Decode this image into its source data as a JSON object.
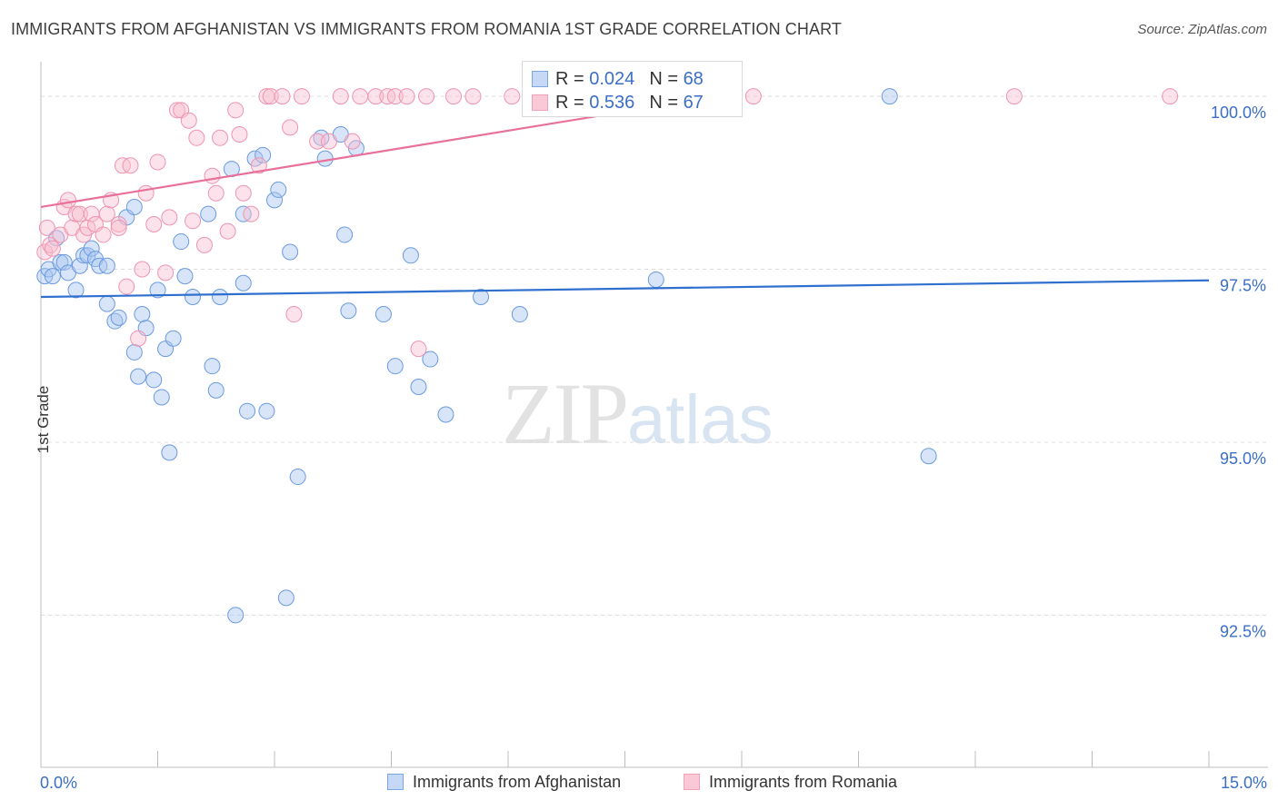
{
  "header": {
    "title": "IMMIGRANTS FROM AFGHANISTAN VS IMMIGRANTS FROM ROMANIA 1ST GRADE CORRELATION CHART",
    "source": "Source: ZipAtlas.com"
  },
  "watermark": {
    "zip": "ZIP",
    "atlas": "atlas"
  },
  "legend": {
    "rows": [
      {
        "r_label": "R = ",
        "r_value": "0.024",
        "n_label": "N = ",
        "n_value": "68",
        "color": "#7aa6e8"
      },
      {
        "r_label": "R = ",
        "r_value": "0.536",
        "n_label": "N = ",
        "n_value": "67",
        "color": "#f0a0b8"
      }
    ]
  },
  "bottom_legend": {
    "afghanistan": "Immigrants from Afghanistan",
    "romania": "Immigrants from Romania"
  },
  "x_axis": {
    "min_label": "0.0%",
    "max_label": "15.0%"
  },
  "chart_data": {
    "type": "scatter",
    "title": "IMMIGRANTS FROM AFGHANISTAN VS IMMIGRANTS FROM ROMANIA 1ST GRADE CORRELATION CHART",
    "xlabel": "",
    "ylabel": "1st Grade",
    "xlim": [
      0,
      15
    ],
    "ylim": [
      90.3,
      100.5
    ],
    "y_ticks": [
      92.5,
      95.0,
      97.5,
      100.0
    ],
    "y_tick_labels": [
      "92.5%",
      "95.0%",
      "97.5%",
      "100.0%"
    ],
    "x_ticks": [
      0,
      1.5,
      3,
      4.5,
      6,
      7.5,
      9,
      10.5,
      12,
      13.5,
      15
    ],
    "grid": true,
    "series": [
      {
        "name": "Immigrants from Afghanistan",
        "color": "#7aa6e8",
        "trend": {
          "x": [
            0,
            15
          ],
          "y": [
            97.1,
            97.34
          ]
        },
        "points": [
          [
            0.05,
            97.4
          ],
          [
            0.1,
            97.5
          ],
          [
            0.15,
            97.4
          ],
          [
            0.2,
            97.95
          ],
          [
            0.25,
            97.6
          ],
          [
            0.3,
            97.6
          ],
          [
            0.35,
            97.45
          ],
          [
            0.45,
            97.2
          ],
          [
            0.5,
            97.55
          ],
          [
            0.55,
            97.7
          ],
          [
            0.6,
            97.7
          ],
          [
            0.65,
            97.8
          ],
          [
            0.7,
            97.65
          ],
          [
            0.75,
            97.55
          ],
          [
            0.85,
            97.55
          ],
          [
            0.85,
            97.0
          ],
          [
            0.95,
            96.75
          ],
          [
            1.0,
            96.8
          ],
          [
            1.1,
            98.25
          ],
          [
            1.2,
            98.4
          ],
          [
            1.2,
            96.3
          ],
          [
            1.25,
            95.95
          ],
          [
            1.3,
            96.85
          ],
          [
            1.35,
            96.65
          ],
          [
            1.45,
            95.9
          ],
          [
            1.5,
            97.2
          ],
          [
            1.55,
            95.65
          ],
          [
            1.6,
            96.35
          ],
          [
            1.65,
            94.85
          ],
          [
            1.7,
            96.5
          ],
          [
            1.8,
            97.9
          ],
          [
            1.85,
            97.4
          ],
          [
            1.95,
            97.1
          ],
          [
            2.15,
            98.3
          ],
          [
            2.2,
            96.1
          ],
          [
            2.25,
            95.75
          ],
          [
            2.3,
            97.1
          ],
          [
            2.45,
            98.95
          ],
          [
            2.5,
            92.5
          ],
          [
            2.6,
            97.3
          ],
          [
            2.6,
            98.3
          ],
          [
            2.65,
            95.45
          ],
          [
            2.75,
            99.1
          ],
          [
            2.85,
            99.15
          ],
          [
            2.9,
            95.45
          ],
          [
            3.0,
            98.5
          ],
          [
            3.05,
            98.65
          ],
          [
            3.15,
            92.75
          ],
          [
            3.2,
            97.75
          ],
          [
            3.3,
            94.5
          ],
          [
            3.6,
            99.4
          ],
          [
            3.65,
            99.1
          ],
          [
            3.85,
            99.45
          ],
          [
            3.9,
            98.0
          ],
          [
            3.95,
            96.9
          ],
          [
            4.05,
            99.25
          ],
          [
            4.4,
            96.85
          ],
          [
            4.55,
            96.1
          ],
          [
            4.75,
            97.7
          ],
          [
            4.85,
            95.8
          ],
          [
            5.0,
            96.2
          ],
          [
            5.2,
            95.4
          ],
          [
            5.65,
            97.1
          ],
          [
            6.15,
            96.85
          ],
          [
            6.7,
            100.0
          ],
          [
            7.9,
            97.35
          ],
          [
            10.9,
            100.0
          ],
          [
            11.4,
            94.8
          ]
        ]
      },
      {
        "name": "Immigrants from Romania",
        "color": "#f0a0b8",
        "trend": {
          "x": [
            0,
            8.7
          ],
          "y": [
            98.4,
            100.0
          ]
        },
        "points": [
          [
            0.05,
            97.75
          ],
          [
            0.08,
            98.1
          ],
          [
            0.12,
            97.85
          ],
          [
            0.15,
            97.8
          ],
          [
            0.25,
            98.0
          ],
          [
            0.3,
            98.4
          ],
          [
            0.35,
            98.5
          ],
          [
            0.4,
            98.1
          ],
          [
            0.45,
            98.3
          ],
          [
            0.5,
            98.3
          ],
          [
            0.55,
            98.0
          ],
          [
            0.6,
            98.1
          ],
          [
            0.65,
            98.3
          ],
          [
            0.7,
            98.15
          ],
          [
            0.8,
            98.0
          ],
          [
            0.85,
            98.3
          ],
          [
            0.9,
            98.5
          ],
          [
            1.0,
            98.15
          ],
          [
            1.0,
            98.1
          ],
          [
            1.05,
            99.0
          ],
          [
            1.1,
            97.25
          ],
          [
            1.15,
            99.0
          ],
          [
            1.25,
            96.5
          ],
          [
            1.3,
            97.5
          ],
          [
            1.35,
            98.6
          ],
          [
            1.45,
            98.15
          ],
          [
            1.5,
            99.05
          ],
          [
            1.6,
            97.45
          ],
          [
            1.65,
            98.25
          ],
          [
            1.75,
            99.8
          ],
          [
            1.8,
            99.8
          ],
          [
            1.9,
            99.65
          ],
          [
            1.95,
            98.2
          ],
          [
            2.0,
            99.4
          ],
          [
            2.1,
            97.85
          ],
          [
            2.2,
            98.85
          ],
          [
            2.25,
            98.6
          ],
          [
            2.3,
            99.4
          ],
          [
            2.4,
            98.05
          ],
          [
            2.5,
            99.8
          ],
          [
            2.55,
            99.45
          ],
          [
            2.6,
            98.6
          ],
          [
            2.7,
            98.3
          ],
          [
            2.8,
            99.0
          ],
          [
            2.9,
            100.0
          ],
          [
            2.95,
            100.0
          ],
          [
            3.1,
            100.0
          ],
          [
            3.2,
            99.55
          ],
          [
            3.25,
            96.85
          ],
          [
            3.35,
            100.0
          ],
          [
            3.55,
            99.35
          ],
          [
            3.7,
            99.35
          ],
          [
            3.85,
            100.0
          ],
          [
            4.0,
            99.35
          ],
          [
            4.1,
            100.0
          ],
          [
            4.3,
            100.0
          ],
          [
            4.45,
            100.0
          ],
          [
            4.55,
            100.0
          ],
          [
            4.7,
            100.0
          ],
          [
            4.85,
            96.35
          ],
          [
            4.95,
            100.0
          ],
          [
            5.3,
            100.0
          ],
          [
            5.55,
            100.0
          ],
          [
            6.05,
            100.0
          ],
          [
            9.15,
            100.0
          ],
          [
            12.5,
            100.0
          ],
          [
            14.5,
            100.0
          ]
        ]
      }
    ]
  }
}
